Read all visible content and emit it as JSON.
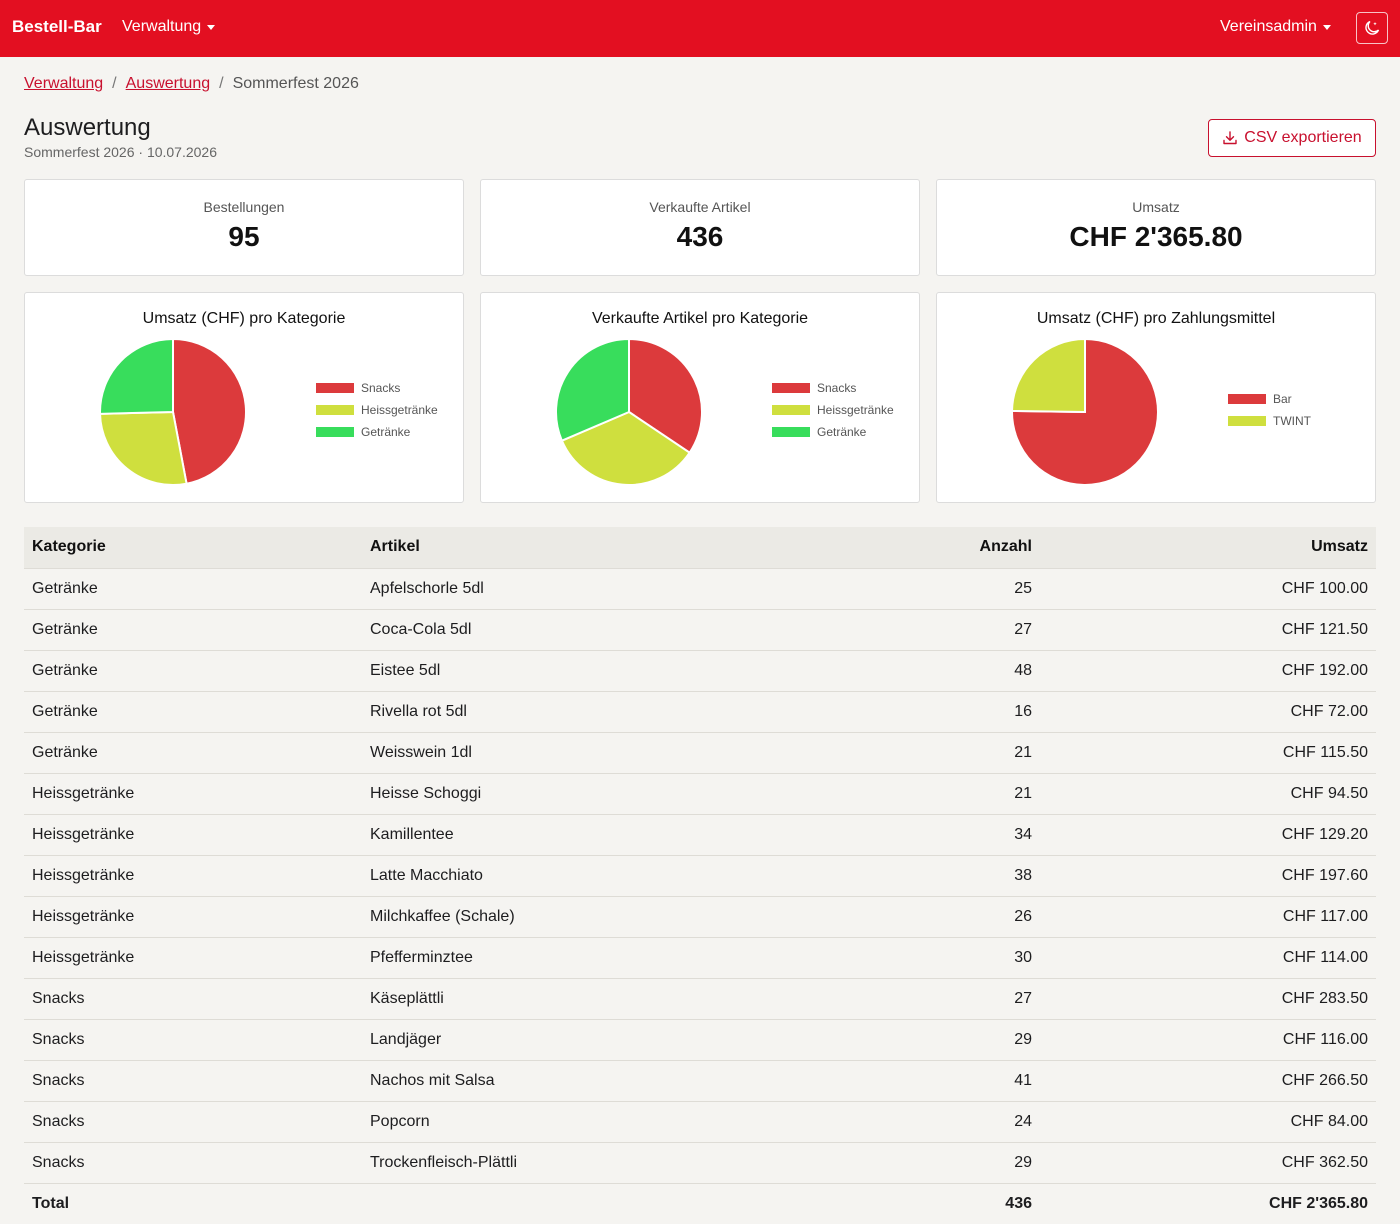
{
  "navbar": {
    "brand": "Bestell-Bar",
    "menu_label": "Verwaltung",
    "user_label": "Vereinsadmin",
    "theme_icon": "moon-stars-icon",
    "color": "#e30f21"
  },
  "breadcrumb": {
    "items": [
      "Verwaltung",
      "Auswertung"
    ],
    "current": "Sommerfest 2026",
    "separator": "/"
  },
  "header": {
    "title": "Auswertung",
    "subtitle": "Sommerfest 2026 · 10.07.2026",
    "export_label": "CSV exportieren",
    "export_icon": "download-icon"
  },
  "stats": [
    {
      "label": "Bestellungen",
      "value": "95"
    },
    {
      "label": "Verkaufte Artikel",
      "value": "436"
    },
    {
      "label": "Umsatz",
      "value": "CHF 2'365.80"
    }
  ],
  "chart_data": [
    {
      "type": "pie",
      "title": "Umsatz (CHF) pro Kategorie",
      "categories": [
        "Snacks",
        "Heissgetränke",
        "Getränke"
      ],
      "values": [
        1112.5,
        652.3,
        601.0
      ],
      "colors": [
        "#dc3a3c",
        "#cfdf3e",
        "#38dd5c"
      ],
      "legend_position": "right"
    },
    {
      "type": "pie",
      "title": "Verkaufte Artikel pro Kategorie",
      "categories": [
        "Snacks",
        "Heissgetränke",
        "Getränke"
      ],
      "values": [
        150,
        149,
        137
      ],
      "colors": [
        "#dc3a3c",
        "#cfdf3e",
        "#38dd5c"
      ],
      "legend_position": "right"
    },
    {
      "type": "pie",
      "title": "Umsatz (CHF) pro Zahlungsmittel",
      "categories": [
        "Bar",
        "TWINT"
      ],
      "values": [
        1780,
        586
      ],
      "colors": [
        "#dc3a3c",
        "#cfdf3e"
      ],
      "legend_position": "right"
    }
  ],
  "table": {
    "headers": [
      "Kategorie",
      "Artikel",
      "Anzahl",
      "Umsatz"
    ],
    "rows": [
      [
        "Getränke",
        "Apfelschorle 5dl",
        "25",
        "CHF 100.00"
      ],
      [
        "Getränke",
        "Coca-Cola 5dl",
        "27",
        "CHF 121.50"
      ],
      [
        "Getränke",
        "Eistee 5dl",
        "48",
        "CHF 192.00"
      ],
      [
        "Getränke",
        "Rivella rot 5dl",
        "16",
        "CHF 72.00"
      ],
      [
        "Getränke",
        "Weisswein 1dl",
        "21",
        "CHF 115.50"
      ],
      [
        "Heissgetränke",
        "Heisse Schoggi",
        "21",
        "CHF 94.50"
      ],
      [
        "Heissgetränke",
        "Kamillentee",
        "34",
        "CHF 129.20"
      ],
      [
        "Heissgetränke",
        "Latte Macchiato",
        "38",
        "CHF 197.60"
      ],
      [
        "Heissgetränke",
        "Milchkaffee (Schale)",
        "26",
        "CHF 117.00"
      ],
      [
        "Heissgetränke",
        "Pfefferminztee",
        "30",
        "CHF 114.00"
      ],
      [
        "Snacks",
        "Käseplättli",
        "27",
        "CHF 283.50"
      ],
      [
        "Snacks",
        "Landjäger",
        "29",
        "CHF 116.00"
      ],
      [
        "Snacks",
        "Nachos mit Salsa",
        "41",
        "CHF 266.50"
      ],
      [
        "Snacks",
        "Popcorn",
        "24",
        "CHF 84.00"
      ],
      [
        "Snacks",
        "Trockenfleisch-Plättli",
        "29",
        "CHF 362.50"
      ]
    ],
    "total": {
      "label": "Total",
      "count": "436",
      "amount": "CHF 2'365.80"
    }
  }
}
